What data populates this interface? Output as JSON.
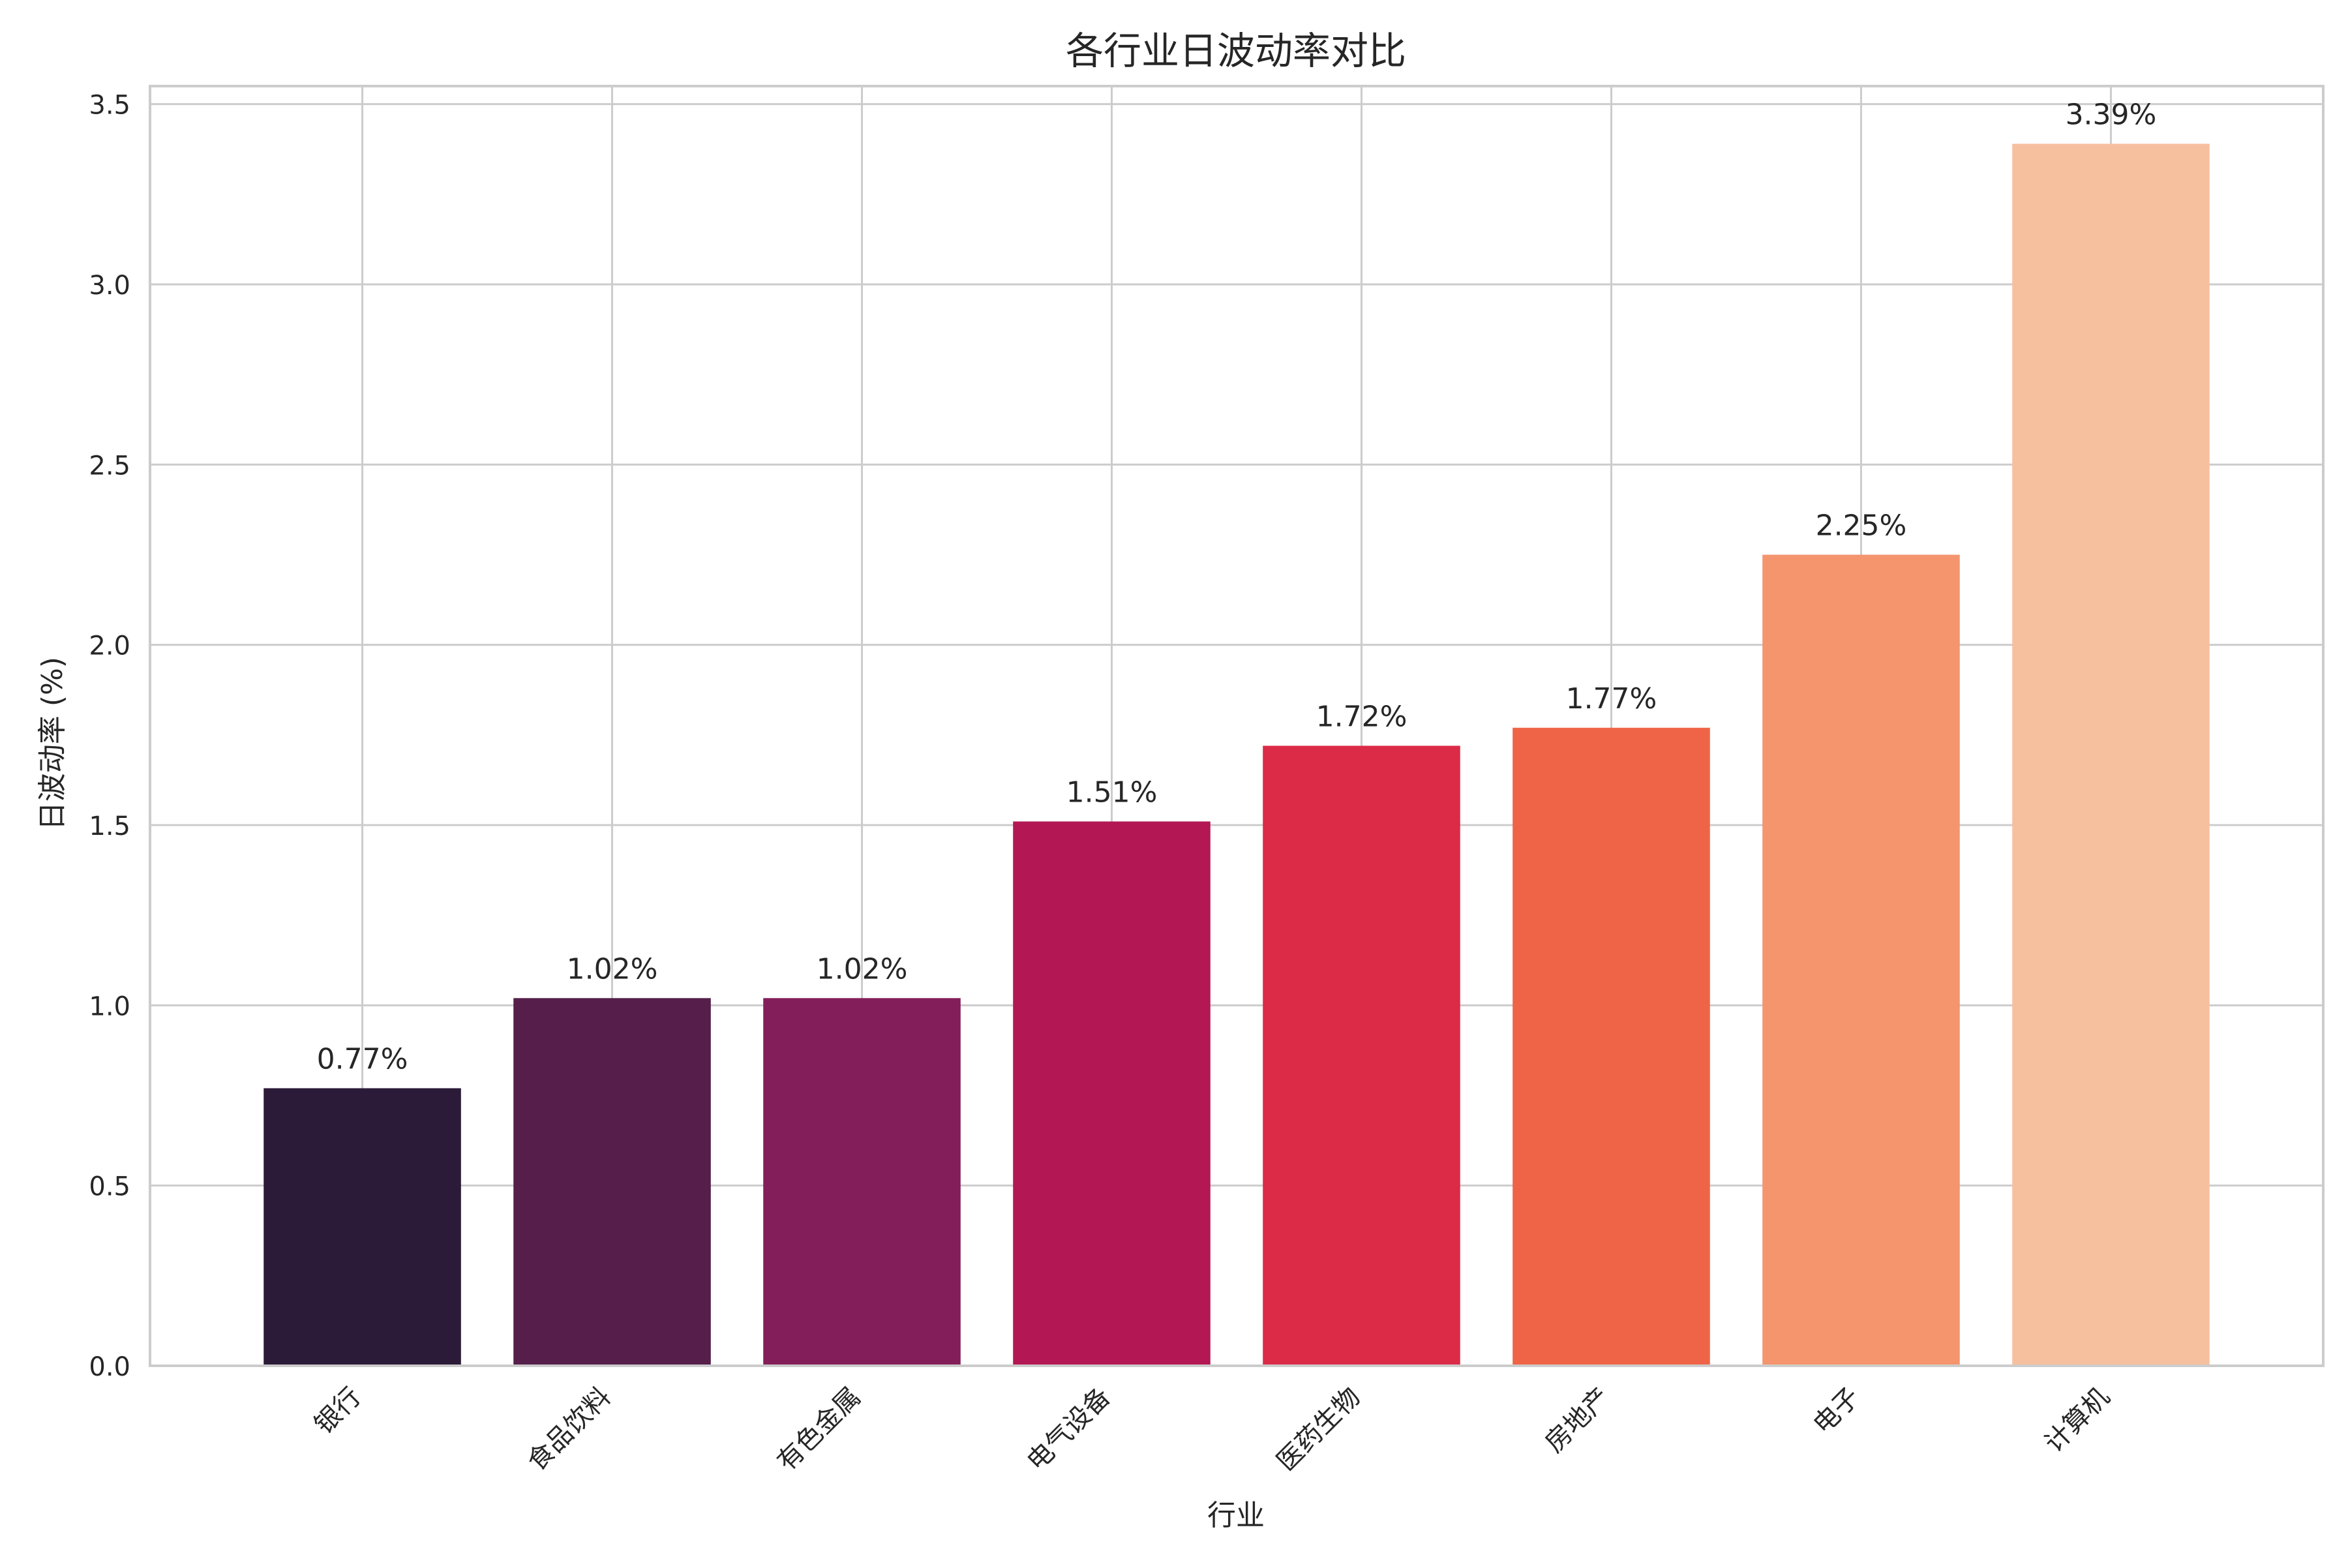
{
  "chart_data": {
    "type": "bar",
    "title": "各行业日波动率对比",
    "xlabel": "行业",
    "ylabel": "日波动率 (%)",
    "categories": [
      "银行",
      "食品饮料",
      "有色金属",
      "电气设备",
      "医药生物",
      "房地产",
      "电子",
      "计算机"
    ],
    "values": [
      0.77,
      1.02,
      1.02,
      1.51,
      1.72,
      1.77,
      2.25,
      3.39
    ],
    "value_labels": [
      "0.77%",
      "1.02%",
      "1.02%",
      "1.51%",
      "1.72%",
      "1.77%",
      "2.25%",
      "3.39%"
    ],
    "colors": [
      "#2b1a38",
      "#551e4b",
      "#841e5a",
      "#b31754",
      "#db2b47",
      "#ef6446",
      "#f4956d",
      "#f6c09f"
    ],
    "ylim": [
      0,
      3.55
    ],
    "yticks": [
      0.0,
      0.5,
      1.0,
      1.5,
      2.0,
      2.5,
      3.0,
      3.5
    ],
    "ytick_labels": [
      "0.0",
      "0.5",
      "1.0",
      "1.5",
      "2.0",
      "2.5",
      "3.0",
      "3.5"
    ],
    "grid": true,
    "legend": false,
    "grid_color": "#cccccc",
    "spine_color": "#cccccc",
    "text_color": "#262626"
  }
}
